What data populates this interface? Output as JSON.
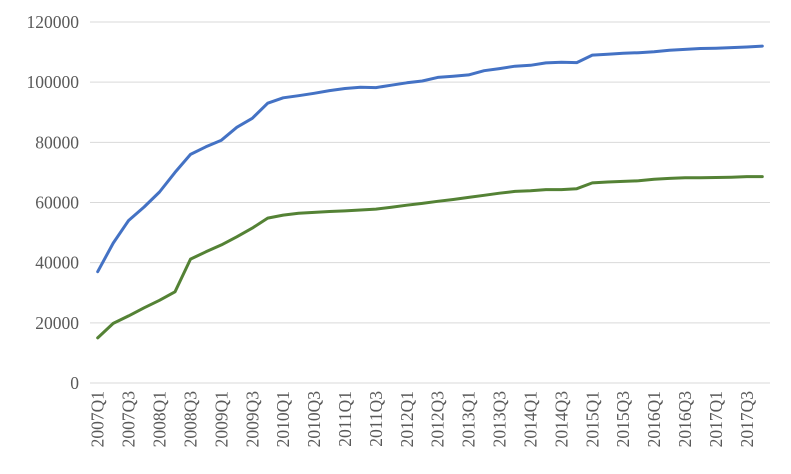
{
  "chart_data": {
    "type": "line",
    "title": "",
    "xlabel": "",
    "ylabel": "",
    "legend": "none",
    "grid": "horizontal",
    "background_color": "#ffffff",
    "gridline_color": "#d9d9d9",
    "tick_label_color": "#595959",
    "ylim": [
      0,
      120000
    ],
    "y_ticks": [
      0,
      20000,
      40000,
      60000,
      80000,
      100000,
      120000
    ],
    "y_tick_labels": [
      "0",
      "20000",
      "40000",
      "60000",
      "80000",
      "100000",
      "120000"
    ],
    "x_tick_label_every": 2,
    "x_tick_labels_visible": [
      "2007Q1",
      "2007Q3",
      "2008Q1",
      "2008Q3",
      "2009Q1",
      "2009Q3",
      "2010Q1",
      "2010Q3",
      "2011Q1",
      "2011Q3",
      "2012Q1",
      "2012Q3",
      "2013Q1",
      "2013Q3",
      "2014Q1",
      "2014Q3",
      "2015Q1",
      "2015Q3",
      "2016Q1",
      "2016Q3",
      "2017Q1",
      "2017Q3"
    ],
    "categories": [
      "2007Q1",
      "2007Q2",
      "2007Q3",
      "2007Q4",
      "2008Q1",
      "2008Q2",
      "2008Q3",
      "2008Q4",
      "2009Q1",
      "2009Q2",
      "2009Q3",
      "2009Q4",
      "2010Q1",
      "2010Q2",
      "2010Q3",
      "2010Q4",
      "2011Q1",
      "2011Q2",
      "2011Q3",
      "2011Q4",
      "2012Q1",
      "2012Q2",
      "2012Q3",
      "2012Q4",
      "2013Q1",
      "2013Q2",
      "2013Q3",
      "2013Q4",
      "2014Q1",
      "2014Q2",
      "2014Q3",
      "2014Q4",
      "2015Q1",
      "2015Q2",
      "2015Q3",
      "2015Q4",
      "2016Q1",
      "2016Q2",
      "2016Q3",
      "2016Q4",
      "2017Q1",
      "2017Q2",
      "2017Q3",
      "2017Q4"
    ],
    "series": [
      {
        "name": "series-blue",
        "color": "#4472c4",
        "values": [
          37000,
          46500,
          54000,
          58500,
          63500,
          70000,
          76000,
          78500,
          80700,
          85000,
          88000,
          93000,
          94800,
          95500,
          96300,
          97200,
          97900,
          98300,
          98200,
          99000,
          99800,
          100400,
          101600,
          102000,
          102400,
          103800,
          104500,
          105300,
          105600,
          106400,
          106600,
          106500,
          109000,
          109300,
          109600,
          109800,
          110100,
          110600,
          110900,
          111200,
          111300,
          111500,
          111700,
          112000
        ]
      },
      {
        "name": "series-green",
        "color": "#548235",
        "values": [
          15000,
          19800,
          22300,
          25000,
          27500,
          30300,
          41200,
          43600,
          45900,
          48600,
          51500,
          54800,
          55800,
          56400,
          56700,
          57000,
          57200,
          57500,
          57800,
          58400,
          59100,
          59700,
          60400,
          61000,
          61700,
          62400,
          63100,
          63700,
          63900,
          64300,
          64300,
          64600,
          66500,
          66800,
          67000,
          67200,
          67700,
          68000,
          68200,
          68200,
          68300,
          68400,
          68600,
          68600
        ]
      }
    ]
  }
}
